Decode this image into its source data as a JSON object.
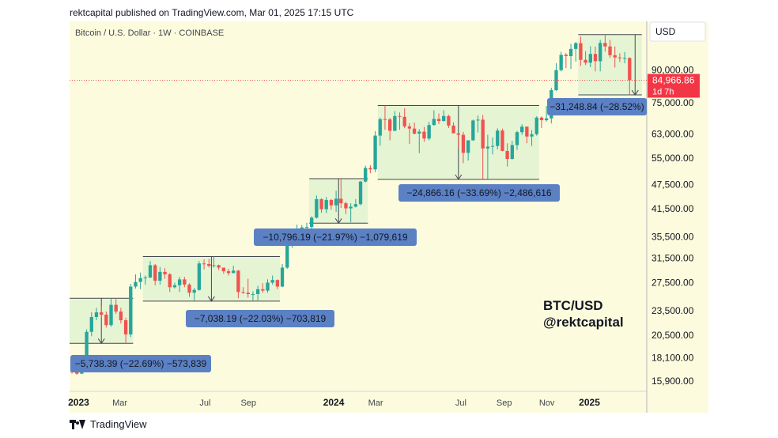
{
  "header": {
    "published": "rektcapital published on TradingView.com, Mar 01, 2025 17:15 UTC"
  },
  "footer": {
    "brand": "TradingView"
  },
  "chart_data": {
    "type": "candlestick",
    "title": "Bitcoin / U.S. Dollar · 1W · COINBASE",
    "currency": "USD",
    "y_scale": "log",
    "ylim": [
      15000,
      118000
    ],
    "y_ticks": [
      {
        "label": "90,000.00",
        "value": 90000
      },
      {
        "label": "75,000.00",
        "value": 75000
      },
      {
        "label": "63,000.00",
        "value": 63000
      },
      {
        "label": "55,000.00",
        "value": 55000
      },
      {
        "label": "47,500.00",
        "value": 47500
      },
      {
        "label": "41,500.00",
        "value": 41500
      },
      {
        "label": "35,500.00",
        "value": 35500
      },
      {
        "label": "31,500.00",
        "value": 31500
      },
      {
        "label": "27,500.00",
        "value": 27500
      },
      {
        "label": "23,500.00",
        "value": 23500
      },
      {
        "label": "20,500.00",
        "value": 20500
      },
      {
        "label": "18,100.00",
        "value": 18100
      },
      {
        "label": "15,900.00",
        "value": 15900
      }
    ],
    "xlim": [
      "2022-12-19",
      "2025-03-24"
    ],
    "x_ticks": [
      {
        "label": "2023",
        "date": "2023-01-01",
        "bold": true
      },
      {
        "label": "Mar",
        "date": "2023-03-01",
        "bold": false
      },
      {
        "label": "Jul",
        "date": "2023-07-01",
        "bold": false
      },
      {
        "label": "Sep",
        "date": "2023-09-01",
        "bold": false
      },
      {
        "label": "2024",
        "date": "2024-01-01",
        "bold": true
      },
      {
        "label": "Mar",
        "date": "2024-03-01",
        "bold": false
      },
      {
        "label": "Jul",
        "date": "2024-07-01",
        "bold": false
      },
      {
        "label": "Sep",
        "date": "2024-09-01",
        "bold": false
      },
      {
        "label": "Nov",
        "date": "2024-11-01",
        "bold": false
      },
      {
        "label": "2025",
        "date": "2025-01-01",
        "bold": true
      }
    ],
    "last_price": {
      "value": 84966.86,
      "label": "84,966.86",
      "countdown": "1d 7h"
    },
    "annotation_text": [
      "BTC/USD",
      "@rektcapital"
    ],
    "ranges": [
      {
        "label": "−5,738.39 (−22.69%) −573,839",
        "top": 25200,
        "bottom": 19600,
        "start": "2022-12-19",
        "end": "2023-03-20"
      },
      {
        "label": "−7,038.19 (−22.03%) −703,819",
        "top": 31800,
        "bottom": 24800,
        "start": "2023-04-03",
        "end": "2023-10-16"
      },
      {
        "label": "−10,796.19 (−21.97%) −1,079,619",
        "top": 49100,
        "bottom": 38300,
        "start": "2023-11-27",
        "end": "2024-02-19"
      },
      {
        "label": "−24,866.16 (−33.69%) −2,486,616",
        "top": 73800,
        "bottom": 48900,
        "start": "2024-03-04",
        "end": "2024-10-21"
      },
      {
        "label": "−31,248.84 (−28.52%)",
        "top": 109600,
        "bottom": 78300,
        "start": "2024-12-16",
        "end": "2025-03-17"
      }
    ],
    "candles": [
      {
        "d": "2022-12-19",
        "o": 16800,
        "h": 16950,
        "l": 16550,
        "c": 16700
      },
      {
        "d": "2022-12-26",
        "o": 16700,
        "h": 16800,
        "l": 16450,
        "c": 16550
      },
      {
        "d": "2023-01-02",
        "o": 16550,
        "h": 17400,
        "l": 16550,
        "c": 17100
      },
      {
        "d": "2023-01-09",
        "o": 17100,
        "h": 21200,
        "l": 17000,
        "c": 20900
      },
      {
        "d": "2023-01-16",
        "o": 20900,
        "h": 23300,
        "l": 20400,
        "c": 22700
      },
      {
        "d": "2023-01-23",
        "o": 22700,
        "h": 23900,
        "l": 22300,
        "c": 23300
      },
      {
        "d": "2023-01-30",
        "o": 23300,
        "h": 24200,
        "l": 22600,
        "c": 23000
      },
      {
        "d": "2023-02-06",
        "o": 23000,
        "h": 23400,
        "l": 21400,
        "c": 21700
      },
      {
        "d": "2023-02-13",
        "o": 21700,
        "h": 25200,
        "l": 21500,
        "c": 24300
      },
      {
        "d": "2023-02-20",
        "o": 24300,
        "h": 25100,
        "l": 23100,
        "c": 23400
      },
      {
        "d": "2023-02-27",
        "o": 23400,
        "h": 23900,
        "l": 21900,
        "c": 22300
      },
      {
        "d": "2023-03-06",
        "o": 22300,
        "h": 22600,
        "l": 19600,
        "c": 20600
      },
      {
        "d": "2023-03-13",
        "o": 20600,
        "h": 27300,
        "l": 20300,
        "c": 26900
      },
      {
        "d": "2023-03-20",
        "o": 26900,
        "h": 28800,
        "l": 26600,
        "c": 27600
      },
      {
        "d": "2023-03-27",
        "o": 27600,
        "h": 29100,
        "l": 26500,
        "c": 28200
      },
      {
        "d": "2023-04-03",
        "o": 28200,
        "h": 28600,
        "l": 27200,
        "c": 28300
      },
      {
        "d": "2023-04-10",
        "o": 28300,
        "h": 31000,
        "l": 28200,
        "c": 30300
      },
      {
        "d": "2023-04-17",
        "o": 30300,
        "h": 30500,
        "l": 27100,
        "c": 27800
      },
      {
        "d": "2023-04-24",
        "o": 27800,
        "h": 30000,
        "l": 27200,
        "c": 29200
      },
      {
        "d": "2023-05-01",
        "o": 29200,
        "h": 29800,
        "l": 28100,
        "c": 28800
      },
      {
        "d": "2023-05-08",
        "o": 28800,
        "h": 29000,
        "l": 26100,
        "c": 26800
      },
      {
        "d": "2023-05-15",
        "o": 26800,
        "h": 27500,
        "l": 26600,
        "c": 27100
      },
      {
        "d": "2023-05-22",
        "o": 27100,
        "h": 28400,
        "l": 26100,
        "c": 28000
      },
      {
        "d": "2023-05-29",
        "o": 28000,
        "h": 28400,
        "l": 26800,
        "c": 27200
      },
      {
        "d": "2023-06-05",
        "o": 27200,
        "h": 27400,
        "l": 25400,
        "c": 26000
      },
      {
        "d": "2023-06-12",
        "o": 26000,
        "h": 26700,
        "l": 24900,
        "c": 26400
      },
      {
        "d": "2023-06-19",
        "o": 26400,
        "h": 31000,
        "l": 26300,
        "c": 30600
      },
      {
        "d": "2023-06-26",
        "o": 30600,
        "h": 31300,
        "l": 29600,
        "c": 30500
      },
      {
        "d": "2023-07-03",
        "o": 30500,
        "h": 31400,
        "l": 29900,
        "c": 30200
      },
      {
        "d": "2023-07-10",
        "o": 30200,
        "h": 31800,
        "l": 29900,
        "c": 30300
      },
      {
        "d": "2023-07-17",
        "o": 30300,
        "h": 30400,
        "l": 29500,
        "c": 29900
      },
      {
        "d": "2023-07-24",
        "o": 29900,
        "h": 29900,
        "l": 28900,
        "c": 29300
      },
      {
        "d": "2023-07-31",
        "o": 29300,
        "h": 29700,
        "l": 28600,
        "c": 29000
      },
      {
        "d": "2023-08-07",
        "o": 29000,
        "h": 30200,
        "l": 29000,
        "c": 29400
      },
      {
        "d": "2023-08-14",
        "o": 29400,
        "h": 29500,
        "l": 25200,
        "c": 26100
      },
      {
        "d": "2023-08-21",
        "o": 26100,
        "h": 26800,
        "l": 25800,
        "c": 26000
      },
      {
        "d": "2023-08-28",
        "o": 26000,
        "h": 28100,
        "l": 25300,
        "c": 25800
      },
      {
        "d": "2023-09-04",
        "o": 25800,
        "h": 26200,
        "l": 24900,
        "c": 25800
      },
      {
        "d": "2023-09-11",
        "o": 25800,
        "h": 27000,
        "l": 24900,
        "c": 26500
      },
      {
        "d": "2023-09-18",
        "o": 26500,
        "h": 27400,
        "l": 26000,
        "c": 26300
      },
      {
        "d": "2023-09-25",
        "o": 26300,
        "h": 28000,
        "l": 26000,
        "c": 27500
      },
      {
        "d": "2023-10-02",
        "o": 27500,
        "h": 28600,
        "l": 27200,
        "c": 27900
      },
      {
        "d": "2023-10-09",
        "o": 27900,
        "h": 28000,
        "l": 26500,
        "c": 26900
      },
      {
        "d": "2023-10-16",
        "o": 26900,
        "h": 30500,
        "l": 26800,
        "c": 29900
      },
      {
        "d": "2023-10-23",
        "o": 29900,
        "h": 35200,
        "l": 29700,
        "c": 34500
      },
      {
        "d": "2023-10-30",
        "o": 34500,
        "h": 35900,
        "l": 33400,
        "c": 35000
      },
      {
        "d": "2023-11-06",
        "o": 35000,
        "h": 38000,
        "l": 34500,
        "c": 37100
      },
      {
        "d": "2023-11-13",
        "o": 37100,
        "h": 37900,
        "l": 34800,
        "c": 37400
      },
      {
        "d": "2023-11-20",
        "o": 37400,
        "h": 38400,
        "l": 35700,
        "c": 37500
      },
      {
        "d": "2023-11-27",
        "o": 37500,
        "h": 39800,
        "l": 37000,
        "c": 39500
      },
      {
        "d": "2023-12-04",
        "o": 39500,
        "h": 44700,
        "l": 39300,
        "c": 43800
      },
      {
        "d": "2023-12-11",
        "o": 43800,
        "h": 44000,
        "l": 40600,
        "c": 41400
      },
      {
        "d": "2023-12-18",
        "o": 41400,
        "h": 44300,
        "l": 40500,
        "c": 43600
      },
      {
        "d": "2023-12-25",
        "o": 43600,
        "h": 43800,
        "l": 41300,
        "c": 42300
      },
      {
        "d": "2024-01-01",
        "o": 42300,
        "h": 45900,
        "l": 40800,
        "c": 43900
      },
      {
        "d": "2024-01-08",
        "o": 43900,
        "h": 49100,
        "l": 41700,
        "c": 42800
      },
      {
        "d": "2024-01-15",
        "o": 42800,
        "h": 43200,
        "l": 40300,
        "c": 41600
      },
      {
        "d": "2024-01-22",
        "o": 41600,
        "h": 42800,
        "l": 38500,
        "c": 42000
      },
      {
        "d": "2024-01-29",
        "o": 42000,
        "h": 43800,
        "l": 41800,
        "c": 42600
      },
      {
        "d": "2024-02-05",
        "o": 42600,
        "h": 48500,
        "l": 42300,
        "c": 48300
      },
      {
        "d": "2024-02-12",
        "o": 48300,
        "h": 52800,
        "l": 48100,
        "c": 52100
      },
      {
        "d": "2024-02-19",
        "o": 52100,
        "h": 52900,
        "l": 50600,
        "c": 51700
      },
      {
        "d": "2024-02-26",
        "o": 51700,
        "h": 64000,
        "l": 50900,
        "c": 62400
      },
      {
        "d": "2024-03-04",
        "o": 62400,
        "h": 69000,
        "l": 59000,
        "c": 68400
      },
      {
        "d": "2024-03-11",
        "o": 68400,
        "h": 73800,
        "l": 64500,
        "c": 68300
      },
      {
        "d": "2024-03-18",
        "o": 68300,
        "h": 68900,
        "l": 60800,
        "c": 64100
      },
      {
        "d": "2024-03-25",
        "o": 64100,
        "h": 71500,
        "l": 64000,
        "c": 69600
      },
      {
        "d": "2024-04-01",
        "o": 69600,
        "h": 71000,
        "l": 64500,
        "c": 69300
      },
      {
        "d": "2024-04-08",
        "o": 69300,
        "h": 72700,
        "l": 65000,
        "c": 65700
      },
      {
        "d": "2024-04-15",
        "o": 65700,
        "h": 66900,
        "l": 59600,
        "c": 64900
      },
      {
        "d": "2024-04-22",
        "o": 64900,
        "h": 67100,
        "l": 62800,
        "c": 63100
      },
      {
        "d": "2024-04-29",
        "o": 63100,
        "h": 64700,
        "l": 56600,
        "c": 63800
      },
      {
        "d": "2024-05-06",
        "o": 63800,
        "h": 65500,
        "l": 60300,
        "c": 61400
      },
      {
        "d": "2024-05-13",
        "o": 61400,
        "h": 67400,
        "l": 60800,
        "c": 66200
      },
      {
        "d": "2024-05-20",
        "o": 66200,
        "h": 71900,
        "l": 66000,
        "c": 68500
      },
      {
        "d": "2024-05-27",
        "o": 68500,
        "h": 70600,
        "l": 66600,
        "c": 67700
      },
      {
        "d": "2024-06-03",
        "o": 67700,
        "h": 71900,
        "l": 67500,
        "c": 69600
      },
      {
        "d": "2024-06-10",
        "o": 69600,
        "h": 70100,
        "l": 65100,
        "c": 66000
      },
      {
        "d": "2024-06-17",
        "o": 66000,
        "h": 67200,
        "l": 63400,
        "c": 63200
      },
      {
        "d": "2024-06-24",
        "o": 63200,
        "h": 63300,
        "l": 58500,
        "c": 62700
      },
      {
        "d": "2024-07-01",
        "o": 62700,
        "h": 63700,
        "l": 53500,
        "c": 56700
      },
      {
        "d": "2024-07-08",
        "o": 56700,
        "h": 60200,
        "l": 54300,
        "c": 60800
      },
      {
        "d": "2024-07-15",
        "o": 60800,
        "h": 68300,
        "l": 60600,
        "c": 67900
      },
      {
        "d": "2024-07-22",
        "o": 67900,
        "h": 69800,
        "l": 63500,
        "c": 68200
      },
      {
        "d": "2024-07-29",
        "o": 68200,
        "h": 70000,
        "l": 49000,
        "c": 58100
      },
      {
        "d": "2024-08-05",
        "o": 58100,
        "h": 62700,
        "l": 49000,
        "c": 58700
      },
      {
        "d": "2024-08-12",
        "o": 58700,
        "h": 61800,
        "l": 56200,
        "c": 58900
      },
      {
        "d": "2024-08-19",
        "o": 58900,
        "h": 65000,
        "l": 57800,
        "c": 64200
      },
      {
        "d": "2024-08-26",
        "o": 64200,
        "h": 64900,
        "l": 57200,
        "c": 57300
      },
      {
        "d": "2024-09-02",
        "o": 57300,
        "h": 59800,
        "l": 52500,
        "c": 54800
      },
      {
        "d": "2024-09-09",
        "o": 54800,
        "h": 60600,
        "l": 54600,
        "c": 59200
      },
      {
        "d": "2024-09-16",
        "o": 59200,
        "h": 64100,
        "l": 57600,
        "c": 63600
      },
      {
        "d": "2024-09-23",
        "o": 63600,
        "h": 66500,
        "l": 62700,
        "c": 65600
      },
      {
        "d": "2024-09-30",
        "o": 65600,
        "h": 65700,
        "l": 59800,
        "c": 62100
      },
      {
        "d": "2024-10-07",
        "o": 62100,
        "h": 64400,
        "l": 58900,
        "c": 62900
      },
      {
        "d": "2024-10-14",
        "o": 62900,
        "h": 69500,
        "l": 62400,
        "c": 69000
      },
      {
        "d": "2024-10-21",
        "o": 69000,
        "h": 69500,
        "l": 65100,
        "c": 68000
      },
      {
        "d": "2024-10-28",
        "o": 68000,
        "h": 73600,
        "l": 67500,
        "c": 68700
      },
      {
        "d": "2024-11-04",
        "o": 68700,
        "h": 81500,
        "l": 66800,
        "c": 80400
      },
      {
        "d": "2024-11-11",
        "o": 80400,
        "h": 93500,
        "l": 80000,
        "c": 89900
      },
      {
        "d": "2024-11-18",
        "o": 89900,
        "h": 99600,
        "l": 89300,
        "c": 97900
      },
      {
        "d": "2024-11-25",
        "o": 97900,
        "h": 98900,
        "l": 90900,
        "c": 97200
      },
      {
        "d": "2024-12-02",
        "o": 97200,
        "h": 104100,
        "l": 90500,
        "c": 101200
      },
      {
        "d": "2024-12-09",
        "o": 101200,
        "h": 105200,
        "l": 94300,
        "c": 104500
      },
      {
        "d": "2024-12-16",
        "o": 104500,
        "h": 108400,
        "l": 92100,
        "c": 95200
      },
      {
        "d": "2024-12-23",
        "o": 95200,
        "h": 99900,
        "l": 92500,
        "c": 93700
      },
      {
        "d": "2024-12-30",
        "o": 93700,
        "h": 102700,
        "l": 91400,
        "c": 98400
      },
      {
        "d": "2025-01-06",
        "o": 98400,
        "h": 102500,
        "l": 89300,
        "c": 94500
      },
      {
        "d": "2025-01-13",
        "o": 94500,
        "h": 106400,
        "l": 89300,
        "c": 104600
      },
      {
        "d": "2025-01-20",
        "o": 104600,
        "h": 109600,
        "l": 99700,
        "c": 102600
      },
      {
        "d": "2025-01-27",
        "o": 102600,
        "h": 106400,
        "l": 96200,
        "c": 97700
      },
      {
        "d": "2025-02-03",
        "o": 97700,
        "h": 102500,
        "l": 91200,
        "c": 96500
      },
      {
        "d": "2025-02-10",
        "o": 96500,
        "h": 98800,
        "l": 94100,
        "c": 96100
      },
      {
        "d": "2025-02-17",
        "o": 96100,
        "h": 99500,
        "l": 93400,
        "c": 96200
      },
      {
        "d": "2025-02-24",
        "o": 96200,
        "h": 96500,
        "l": 78300,
        "c": 84966.86
      }
    ]
  }
}
